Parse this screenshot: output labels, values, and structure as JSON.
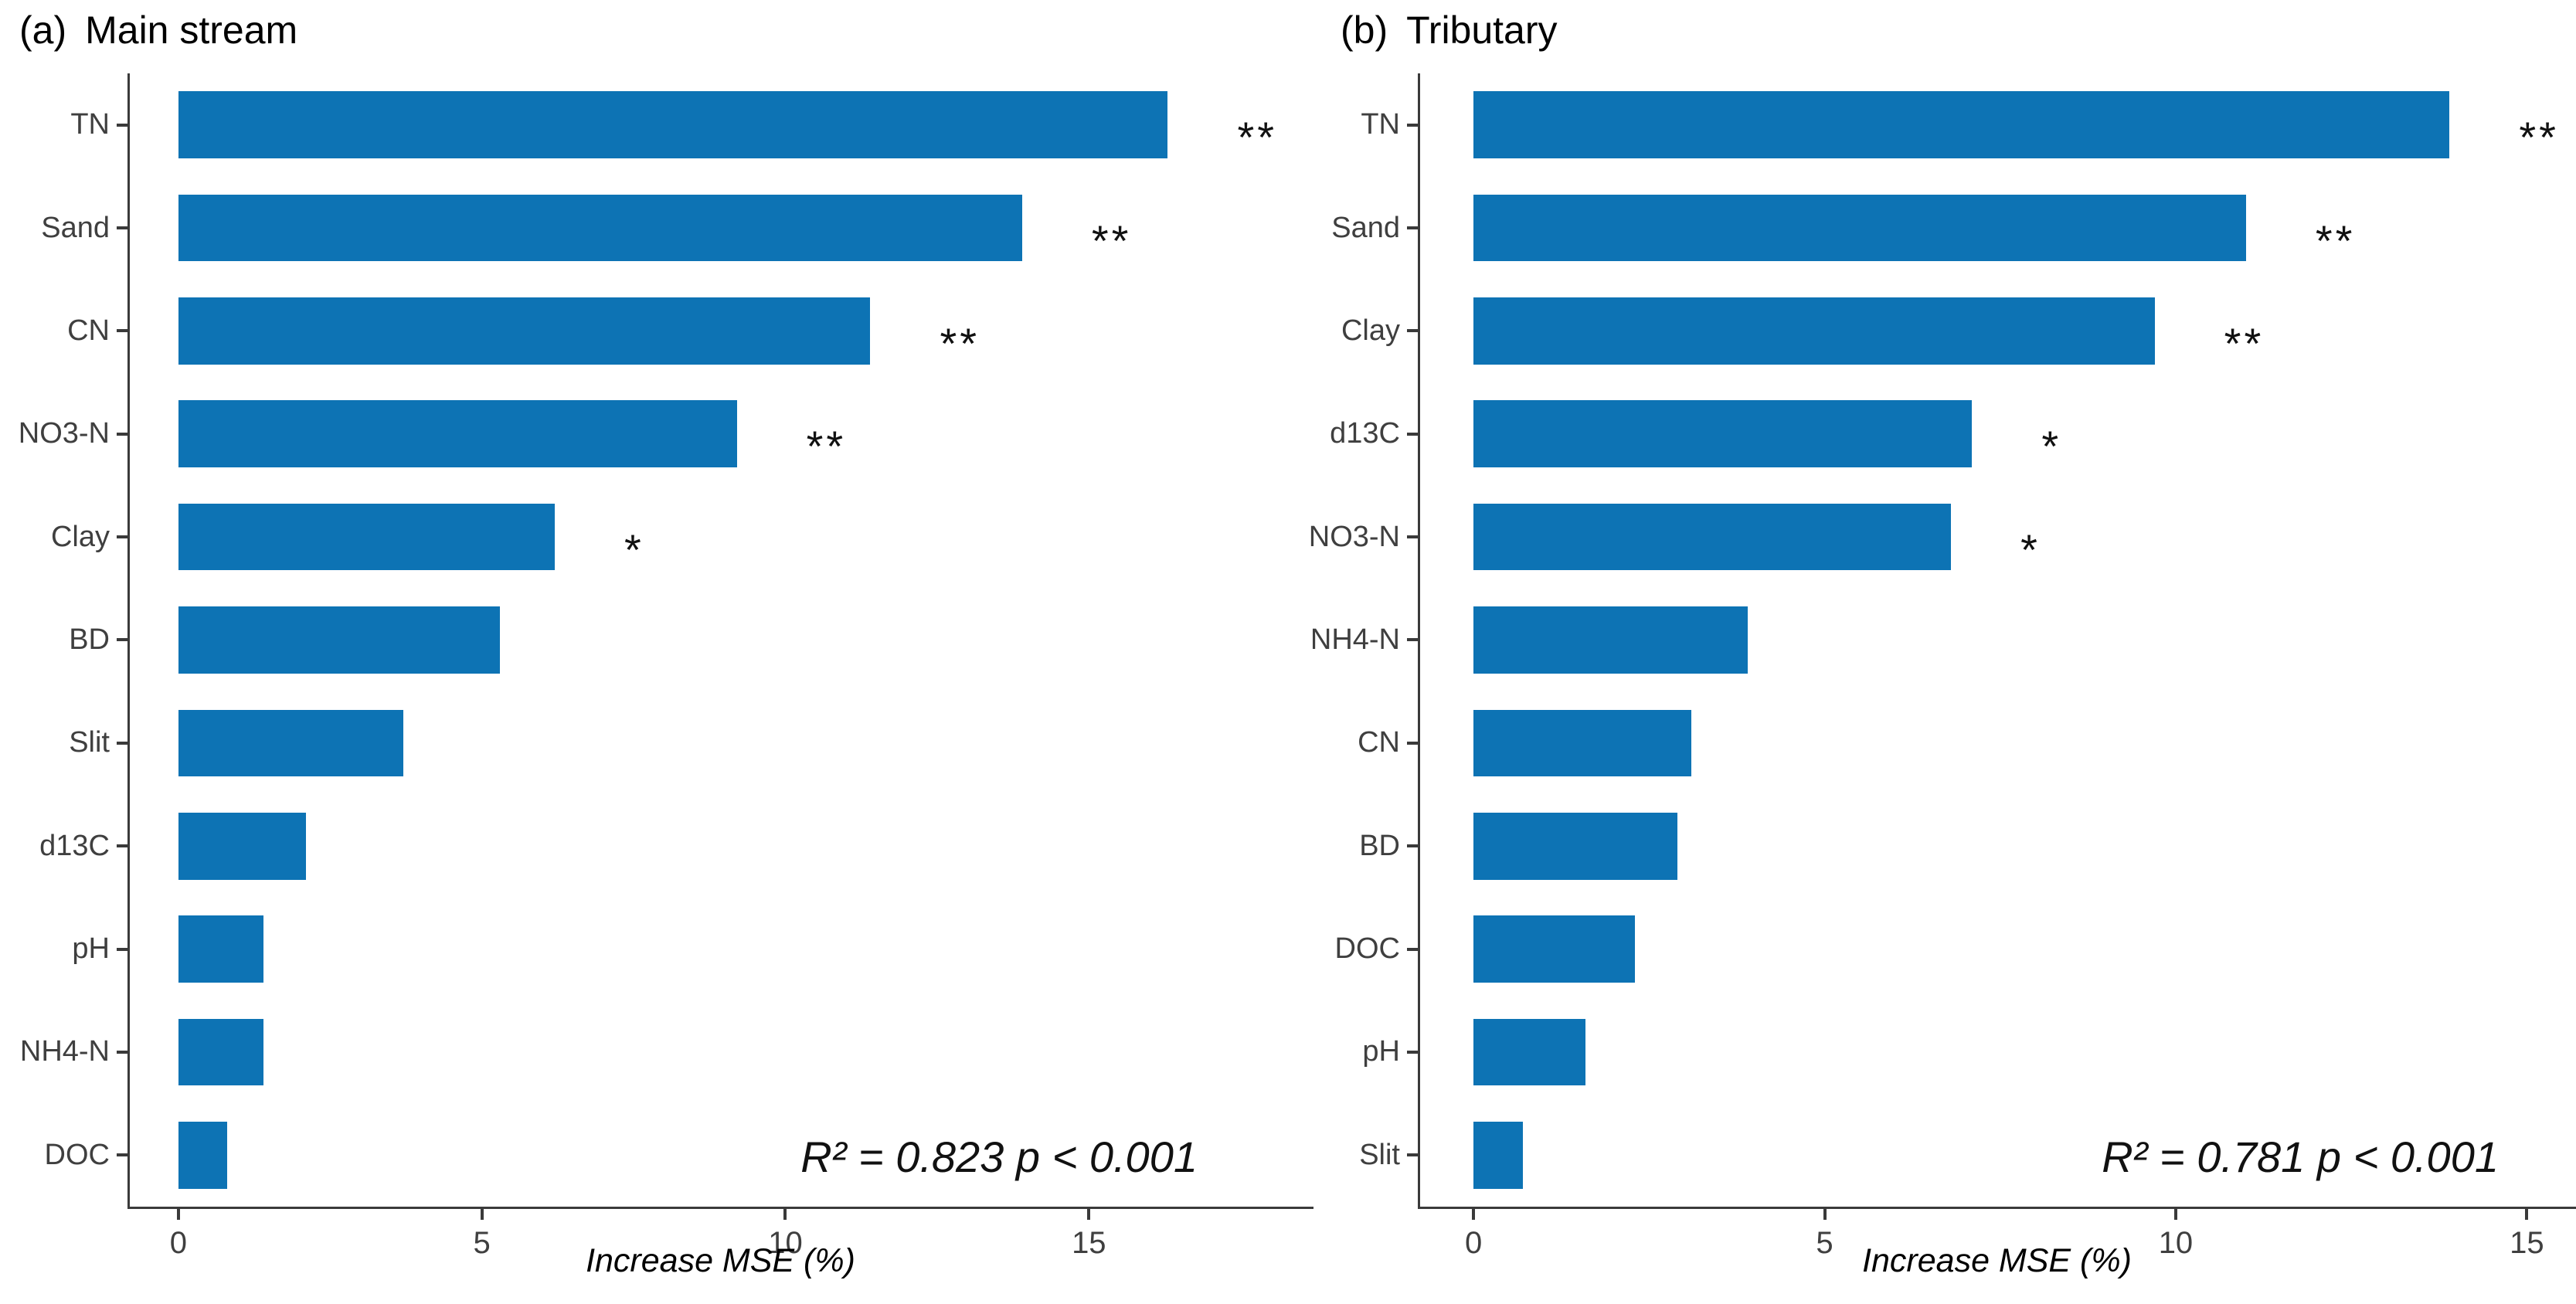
{
  "colors": {
    "bar": "#0d73b4",
    "axis": "#3a3a3a",
    "tick_text": "#3f3f3f",
    "title_text": "#000000"
  },
  "chart_data": [
    {
      "type": "bar",
      "orientation": "horizontal",
      "tag": "(a)",
      "title": "Main stream",
      "xlabel": "Increase MSE (%)",
      "stats": "R² = 0.823 p < 0.001",
      "categories": [
        "TN",
        "Sand",
        "CN",
        "NO3-N",
        "Clay",
        "BD",
        "Slit",
        "d13C",
        "pH",
        "NH4-N",
        "DOC"
      ],
      "values": [
        16.3,
        13.9,
        11.4,
        9.2,
        6.2,
        5.3,
        3.7,
        2.1,
        1.4,
        1.4,
        0.8
      ],
      "significance": [
        "**",
        "**",
        "**",
        "**",
        "*",
        "",
        "",
        "",
        "",
        "",
        ""
      ],
      "x_ticks": [
        0,
        5,
        10,
        15
      ],
      "axis": {
        "offset_units": 0.8,
        "max_units": 18.7
      },
      "grid": false,
      "legend": "none"
    },
    {
      "type": "bar",
      "orientation": "horizontal",
      "tag": "(b)",
      "title": "Tributary",
      "xlabel": "Increase MSE (%)",
      "stats": "R² = 0.781 p < 0.001",
      "categories": [
        "TN",
        "Sand",
        "Clay",
        "d13C",
        "NO3-N",
        "NH4-N",
        "CN",
        "BD",
        "DOC",
        "pH",
        "Slit"
      ],
      "values": [
        13.9,
        11.0,
        9.7,
        7.1,
        6.8,
        3.9,
        3.1,
        2.9,
        2.3,
        1.6,
        0.7
      ],
      "significance": [
        "**",
        "**",
        "**",
        "*",
        "*",
        "",
        "",
        "",
        "",
        "",
        ""
      ],
      "x_ticks": [
        0,
        5,
        10,
        15
      ],
      "axis": {
        "offset_units": 0.76,
        "max_units": 15.7
      },
      "grid": false,
      "legend": "none"
    }
  ]
}
